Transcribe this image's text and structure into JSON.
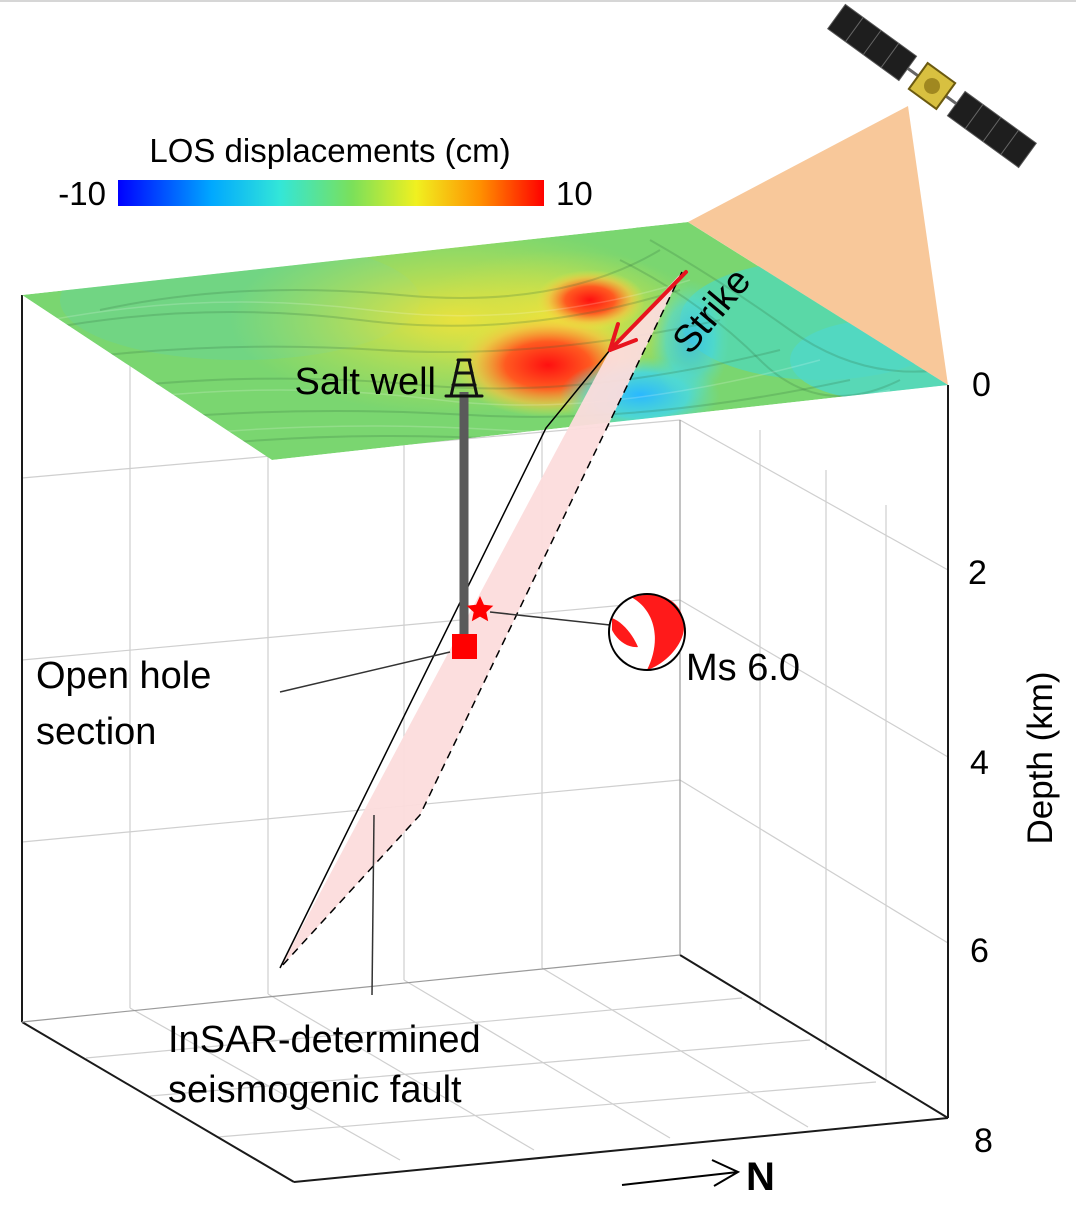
{
  "colorbar": {
    "title": "LOS displacements (cm)",
    "min_label": "-10",
    "max_label": "10",
    "colors": [
      "#0000ff",
      "#00aaff",
      "#33e0e0",
      "#66e066",
      "#e6e620",
      "#ff9900",
      "#ff0000"
    ]
  },
  "labels": {
    "salt_well": "Salt well",
    "strike": "Strike",
    "open_hole_line1": "Open hole",
    "open_hole_line2": "section",
    "magnitude": "Ms 6.0",
    "fault_line1": "InSAR-determined",
    "fault_line2": "seismogenic fault",
    "north": "N"
  },
  "axis": {
    "label": "Depth (km)",
    "ticks": [
      "0",
      "2",
      "4",
      "6",
      "8"
    ]
  },
  "colors": {
    "fault_plane": "#fcdcdc",
    "insar_beam": "#f8c89a",
    "well": "#5a5a5a",
    "marker": "#ff0000",
    "strike_arrow": "#e8141e"
  }
}
